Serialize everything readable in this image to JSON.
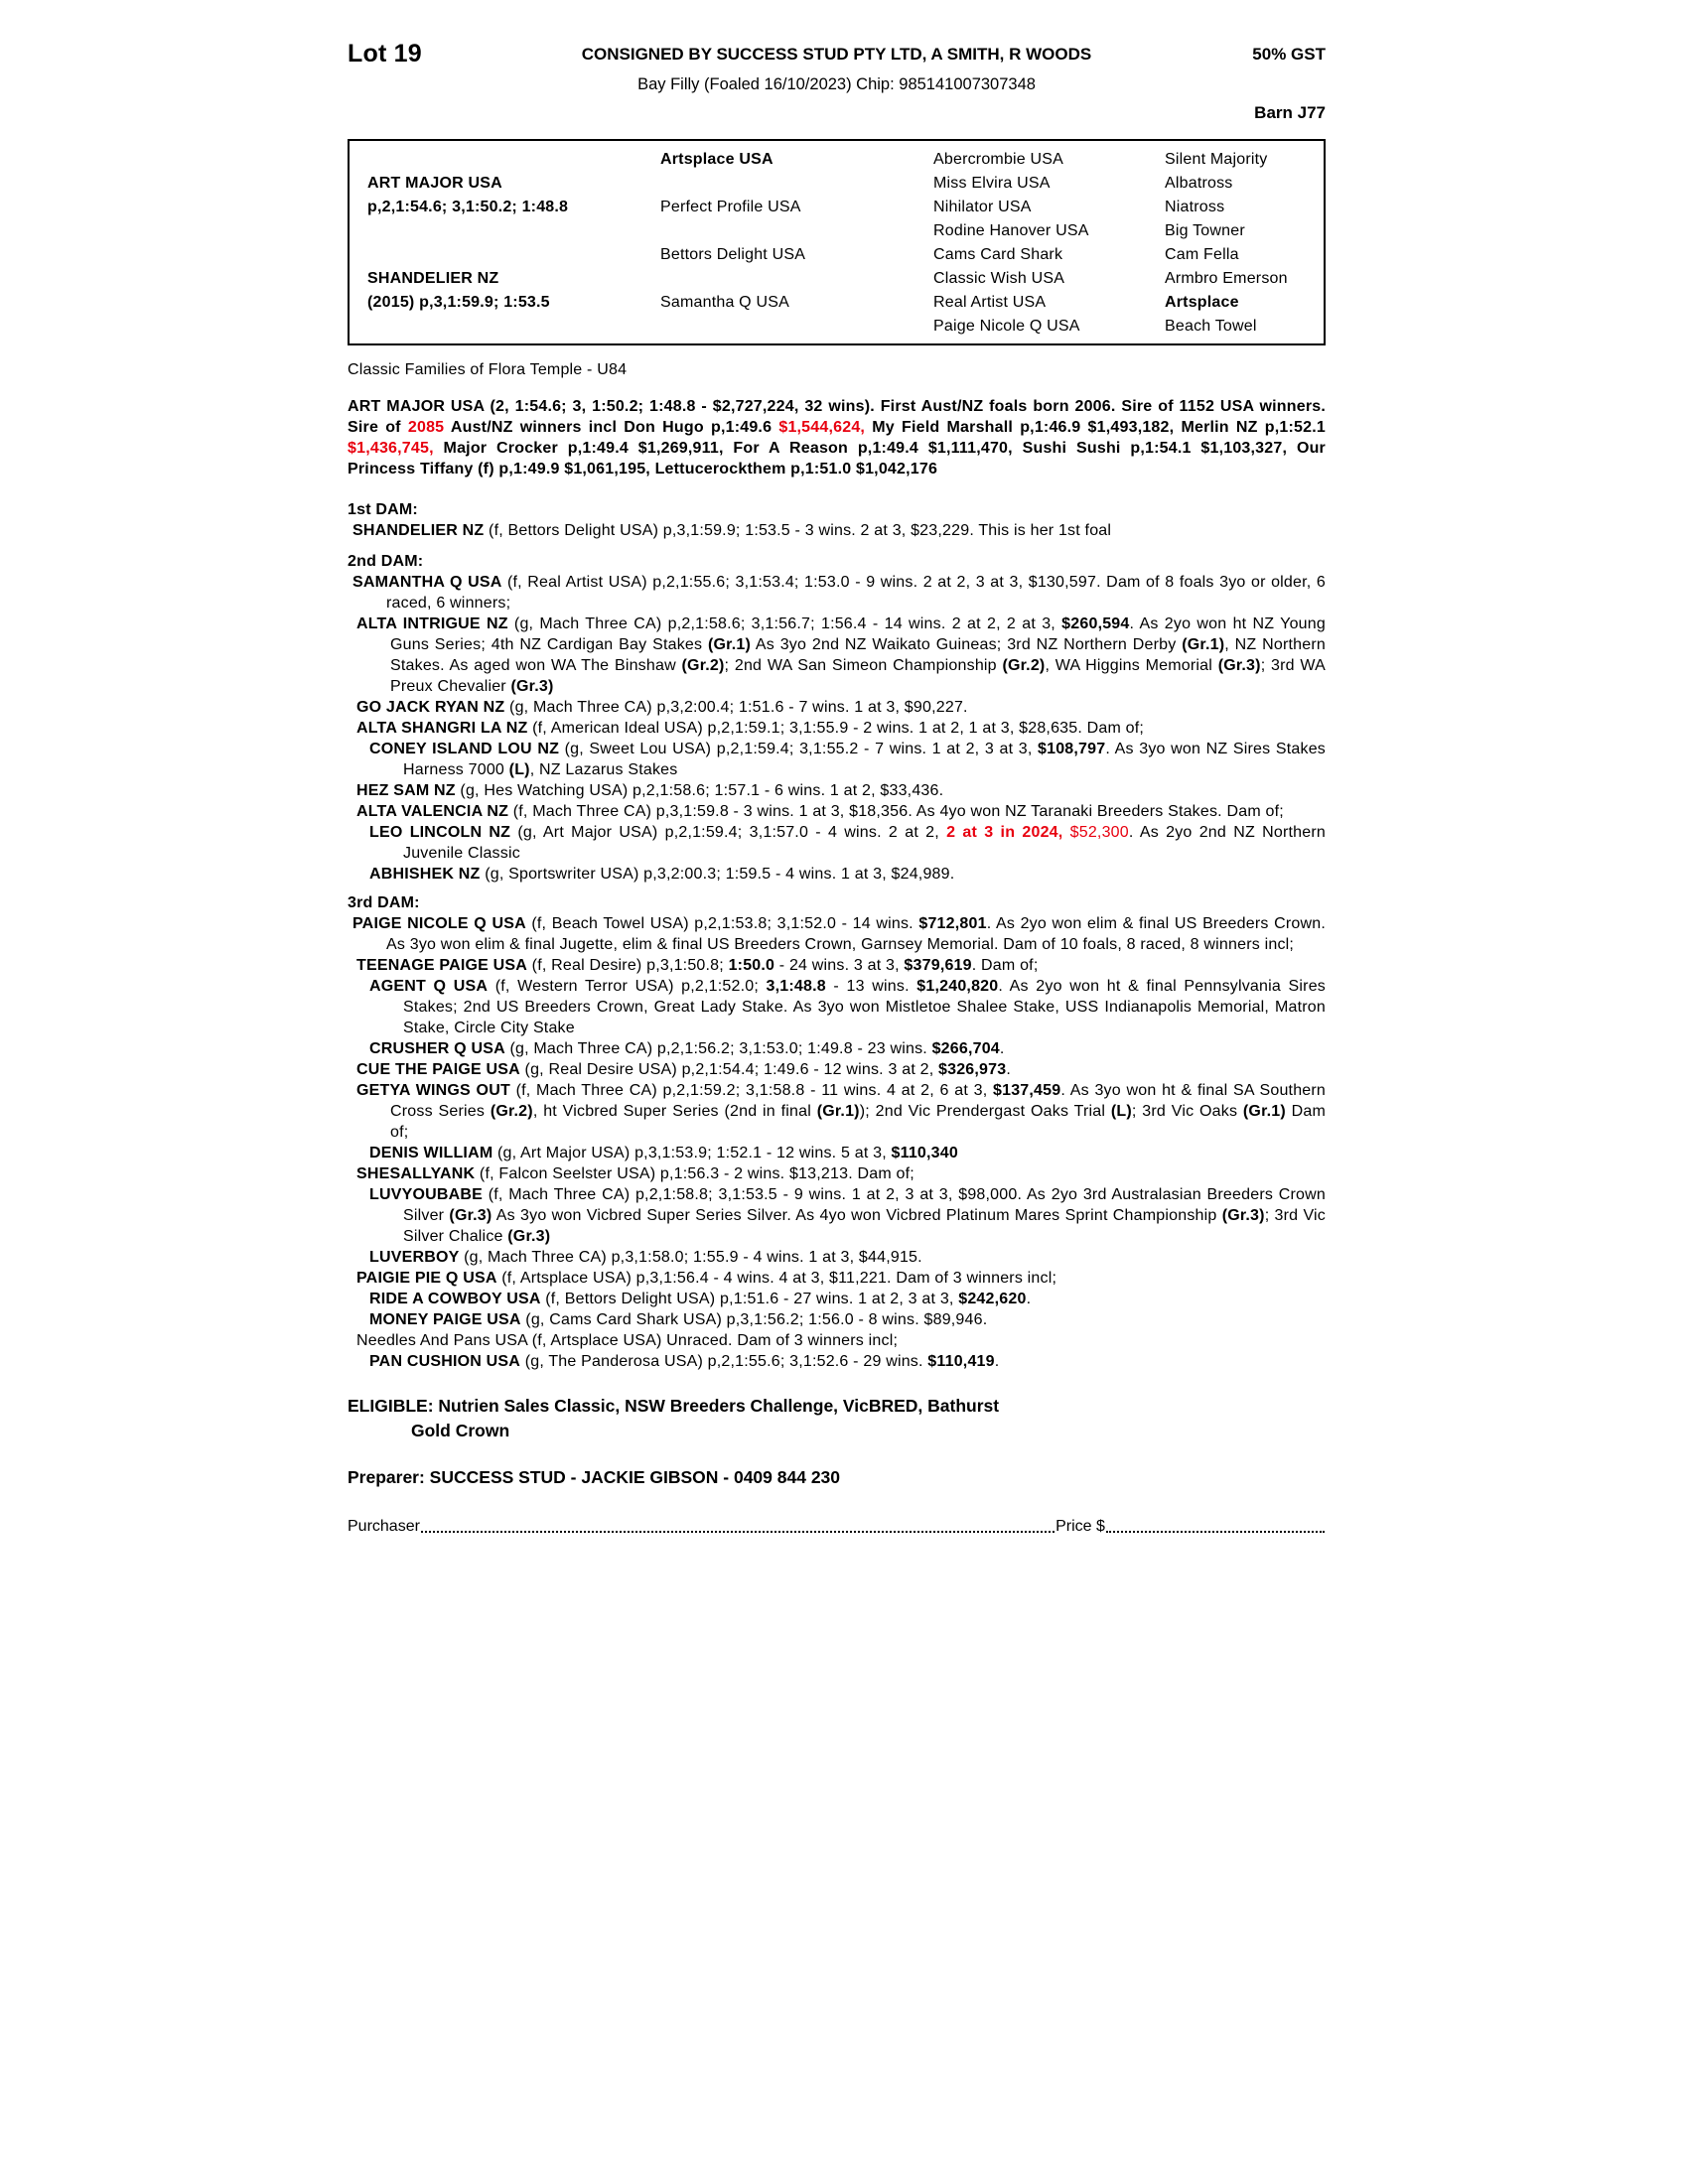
{
  "colors": {
    "red": "#e8000f",
    "text": "#000000"
  },
  "header": {
    "lot": "Lot 19",
    "consignor": "CONSIGNED BY SUCCESS STUD PTY LTD, A SMITH, R WOODS",
    "gst": "50% GST",
    "description": "Bay Filly (Foaled 16/10/2023) Chip: 985141007307348",
    "barn": "Barn J77"
  },
  "pedigree_table": {
    "col1": [
      {
        "name": "ART MAJOR USA",
        "record": "p,2,1:54.6; 3,1:50.2; 1:48.8",
        "row": 2
      },
      {
        "name": "SHANDELIER NZ",
        "record": "(2015) p,3,1:59.9; 1:53.5",
        "row": 6
      }
    ],
    "col2": [
      {
        "label": "Artsplace USA",
        "bold": true,
        "row": 1
      },
      {
        "label": "Perfect Profile USA",
        "bold": false,
        "row": 3
      },
      {
        "label": "Bettors Delight USA",
        "bold": false,
        "row": 5
      },
      {
        "label": "Samantha Q USA",
        "bold": false,
        "row": 7
      }
    ],
    "col3": [
      {
        "label": "Abercrombie USA"
      },
      {
        "label": "Miss Elvira USA"
      },
      {
        "label": "Nihilator USA"
      },
      {
        "label": "Rodine Hanover USA"
      },
      {
        "label": "Cams Card Shark"
      },
      {
        "label": "Classic Wish USA"
      },
      {
        "label": "Real Artist USA"
      },
      {
        "label": "Paige Nicole Q USA"
      }
    ],
    "col4": [
      {
        "label": "Silent Majority"
      },
      {
        "label": "Albatross"
      },
      {
        "label": "Niatross"
      },
      {
        "label": "Big Towner"
      },
      {
        "label": "Cam Fella"
      },
      {
        "label": "Armbro Emerson"
      },
      {
        "label": "Artsplace",
        "bold": true
      },
      {
        "label": "Beach Towel"
      }
    ]
  },
  "family_line": "Classic Families of Flora Temple - U84",
  "body": {
    "blocks": [
      {
        "cls": "para",
        "name": "sire-paragraph",
        "seg": [
          [
            "ART MAJOR USA (2, 1:54.6; 3, 1:50.2; 1:48.8 - $2,727,224, 32 wins). First Aust/NZ foals born 2006. Sire of 1152 USA winners. Sire of ",
            ""
          ],
          [
            "2085",
            "r"
          ],
          [
            " Aust/NZ winners incl Don Hugo p,1:49.6 ",
            ""
          ],
          [
            "$1,544,624,",
            "r"
          ],
          [
            " My Field Marshall p,1:46.9 $1,493,182, Merlin NZ p,1:52.1 ",
            ""
          ],
          [
            "$1,436,745,",
            "r"
          ],
          [
            " Major Crocker p,1:49.4 $1,269,911, For A Reason p,1:49.4 $1,111,470, Sushi Sushi p,1:54.1 $1,103,327, Our Princess Tiffany (f) p,1:49.9 $1,061,195, Lettucerockthem p,1:51.0 $1,042,176",
            ""
          ]
        ]
      },
      {
        "cls": "hd",
        "mt": 20,
        "name": "heading-1st-dam",
        "seg": [
          [
            "1st DAM:",
            ""
          ]
        ]
      },
      {
        "cls": "e0",
        "seg": [
          [
            "SHANDELIER NZ",
            "b"
          ],
          [
            " (f, Bettors Delight USA) p,3,1:59.9; 1:53.5 - 3 wins. 2 at 3, $23,229. This is her 1st foal",
            ""
          ]
        ]
      },
      {
        "cls": "hd",
        "mt": 10,
        "name": "heading-2nd-dam",
        "seg": [
          [
            "2nd DAM:",
            ""
          ]
        ]
      },
      {
        "cls": "e0",
        "seg": [
          [
            "SAMANTHA Q USA",
            "b"
          ],
          [
            " (f, Real Artist USA) p,2,1:55.6; 3,1:53.4; 1:53.0 - 9 wins. 2 at 2, 3 at 3, $130,597. Dam of 8 foals 3yo or older, 6 raced, 6 winners;",
            ""
          ]
        ]
      },
      {
        "cls": "e1",
        "seg": [
          [
            "ALTA INTRIGUE NZ",
            "b"
          ],
          [
            " (g, Mach Three CA) p,2,1:58.6; 3,1:56.7; 1:56.4 - 14 wins. 2 at 2, 2 at 3, ",
            ""
          ],
          [
            "$260,594",
            "b"
          ],
          [
            ". As 2yo won ht NZ Young Guns Series; 4th NZ Cardigan Bay Stakes ",
            ""
          ],
          [
            "(Gr.1)",
            "b"
          ],
          [
            " As 3yo 2nd NZ Waikato Guineas; 3rd NZ Northern Derby ",
            ""
          ],
          [
            "(Gr.1)",
            "b"
          ],
          [
            ", NZ Northern Stakes. As aged won WA The Binshaw ",
            ""
          ],
          [
            "(Gr.2)",
            "b"
          ],
          [
            "; 2nd WA San Simeon Championship ",
            ""
          ],
          [
            "(Gr.2)",
            "b"
          ],
          [
            ", WA Higgins Memorial ",
            ""
          ],
          [
            "(Gr.3)",
            "b"
          ],
          [
            "; 3rd WA Preux Chevalier ",
            ""
          ],
          [
            "(Gr.3)",
            "b"
          ]
        ]
      },
      {
        "cls": "e1",
        "seg": [
          [
            "GO JACK RYAN NZ",
            "b"
          ],
          [
            " (g, Mach Three CA) p,3,2:00.4; 1:51.6 - 7 wins. 1 at 3, $90,227.",
            ""
          ]
        ]
      },
      {
        "cls": "e1",
        "seg": [
          [
            "ALTA SHANGRI LA NZ",
            "b"
          ],
          [
            " (f, American Ideal USA) p,2,1:59.1; 3,1:55.9 - 2 wins. 1 at 2, 1 at 3, $28,635. Dam of;",
            ""
          ]
        ]
      },
      {
        "cls": "e2",
        "seg": [
          [
            "CONEY ISLAND LOU NZ",
            "b"
          ],
          [
            " (g, Sweet Lou USA) p,2,1:59.4; 3,1:55.2 - 7 wins. 1 at 2, 3 at 3, ",
            ""
          ],
          [
            "$108,797",
            "b"
          ],
          [
            ". As 3yo won NZ Sires Stakes Harness 7000 ",
            ""
          ],
          [
            "(L)",
            "b"
          ],
          [
            ", NZ Lazarus Stakes",
            ""
          ]
        ]
      },
      {
        "cls": "e1",
        "seg": [
          [
            "HEZ SAM NZ",
            "b"
          ],
          [
            " (g, Hes Watching USA) p,2,1:58.6; 1:57.1 - 6 wins. 1 at 2, $33,436.",
            ""
          ]
        ]
      },
      {
        "cls": "e1",
        "seg": [
          [
            "ALTA VALENCIA NZ",
            "b"
          ],
          [
            " (f, Mach Three CA) p,3,1:59.8 - 3 wins. 1 at 3, $18,356. As 4yo won NZ Taranaki Breeders Stakes. Dam of;",
            ""
          ]
        ]
      },
      {
        "cls": "e2",
        "seg": [
          [
            "LEO LINCOLN NZ",
            "b"
          ],
          [
            " (g, Art Major USA) p,2,1:59.4; 3,1:57.0 - 4 wins. 2 at 2, ",
            ""
          ],
          [
            "2 at 3 in 2024,",
            "br"
          ],
          [
            " ",
            ""
          ],
          [
            "$52,300",
            "r"
          ],
          [
            ". As 2yo 2nd NZ Northern Juvenile Classic",
            ""
          ]
        ]
      },
      {
        "cls": "e2",
        "seg": [
          [
            "ABHISHEK NZ",
            "b"
          ],
          [
            " (g, Sportswriter USA) p,3,2:00.3; 1:59.5 - 4 wins. 1 at 3, $24,989.",
            ""
          ]
        ]
      },
      {
        "cls": "hd",
        "mt": 8,
        "name": "heading-3rd-dam",
        "seg": [
          [
            "3rd DAM:",
            ""
          ]
        ]
      },
      {
        "cls": "e0",
        "seg": [
          [
            "PAIGE NICOLE Q USA",
            "b"
          ],
          [
            " (f, Beach Towel USA) p,2,1:53.8; 3,1:52.0 - 14 wins. ",
            ""
          ],
          [
            "$712,801",
            "b"
          ],
          [
            ". As 2yo won elim & final US Breeders Crown. As 3yo won elim & final Jugette, elim & final US Breeders Crown, Garnsey Memorial. Dam of 10 foals, 8 raced, 8 winners incl;",
            ""
          ]
        ]
      },
      {
        "cls": "e1",
        "seg": [
          [
            "TEENAGE PAIGE USA",
            "b"
          ],
          [
            " (f, Real Desire) p,3,1:50.8; ",
            ""
          ],
          [
            "1:50.0",
            "b"
          ],
          [
            " - 24 wins. 3 at 3, ",
            ""
          ],
          [
            "$379,619",
            "b"
          ],
          [
            ". Dam of;",
            ""
          ]
        ]
      },
      {
        "cls": "e2",
        "seg": [
          [
            "AGENT Q USA",
            "b"
          ],
          [
            " (f, Western Terror USA) p,2,1:52.0; ",
            ""
          ],
          [
            "3,1:48.8",
            "b"
          ],
          [
            " - 13 wins. ",
            ""
          ],
          [
            "$1,240,820",
            "b"
          ],
          [
            ". As 2yo won ht & final Pennsylvania Sires Stakes; 2nd US Breeders Crown, Great Lady Stake. As 3yo won Mistletoe Shalee Stake, USS Indianapolis Memorial, Matron Stake, Circle City Stake",
            ""
          ]
        ]
      },
      {
        "cls": "e2",
        "seg": [
          [
            "CRUSHER Q USA",
            "b"
          ],
          [
            " (g, Mach Three CA) p,2,1:56.2; 3,1:53.0; 1:49.8 - 23 wins. ",
            ""
          ],
          [
            "$266,704",
            "b"
          ],
          [
            ".",
            ""
          ]
        ]
      },
      {
        "cls": "e1",
        "seg": [
          [
            "CUE THE PAIGE USA",
            "b"
          ],
          [
            " (g, Real Desire USA) p,2,1:54.4; 1:49.6 - 12 wins. 3 at 2, ",
            ""
          ],
          [
            "$326,973",
            "b"
          ],
          [
            ".",
            ""
          ]
        ]
      },
      {
        "cls": "e1",
        "seg": [
          [
            "GETYA WINGS OUT",
            "b"
          ],
          [
            " (f, Mach Three CA) p,2,1:59.2; 3,1:58.8 - 11 wins. 4 at 2, 6 at 3, ",
            ""
          ],
          [
            "$137,459",
            "b"
          ],
          [
            ". As 3yo won ht & final SA Southern Cross Series ",
            ""
          ],
          [
            "(Gr.2)",
            "b"
          ],
          [
            ", ht Vicbred Super Series (2nd in final ",
            ""
          ],
          [
            "(Gr.1)",
            "b"
          ],
          [
            "); 2nd Vic Prendergast Oaks Trial ",
            ""
          ],
          [
            "(L)",
            "b"
          ],
          [
            "; 3rd Vic Oaks ",
            ""
          ],
          [
            "(Gr.1)",
            "b"
          ],
          [
            " Dam of;",
            ""
          ]
        ]
      },
      {
        "cls": "e2",
        "seg": [
          [
            "DENIS WILLIAM",
            "b"
          ],
          [
            " (g, Art Major USA) p,3,1:53.9; 1:52.1 - 12 wins. 5 at 3, ",
            ""
          ],
          [
            "$110,340",
            "b"
          ]
        ]
      },
      {
        "cls": "e1",
        "seg": [
          [
            "SHESALLYANK",
            "b"
          ],
          [
            " (f, Falcon Seelster USA) p,1:56.3 - 2 wins. $13,213. Dam of;",
            ""
          ]
        ]
      },
      {
        "cls": "e2",
        "seg": [
          [
            "LUVYOUBABE",
            "b"
          ],
          [
            " (f, Mach Three CA) p,2,1:58.8; 3,1:53.5 - 9 wins. 1 at 2, 3 at 3, $98,000. As 2yo 3rd Australasian Breeders Crown Silver ",
            ""
          ],
          [
            "(Gr.3)",
            "b"
          ],
          [
            " As 3yo won Vicbred Super Series Silver. As 4yo won Vicbred Platinum Mares Sprint Championship ",
            ""
          ],
          [
            "(Gr.3)",
            "b"
          ],
          [
            "; 3rd Vic Silver Chalice ",
            ""
          ],
          [
            "(Gr.3)",
            "b"
          ]
        ]
      },
      {
        "cls": "e2",
        "seg": [
          [
            "LUVERBOY",
            "b"
          ],
          [
            " (g, Mach Three CA) p,3,1:58.0; 1:55.9 - 4 wins. 1 at 3, $44,915.",
            ""
          ]
        ]
      },
      {
        "cls": "e1",
        "seg": [
          [
            "PAIGIE PIE Q USA",
            "b"
          ],
          [
            " (f, Artsplace USA) p,3,1:56.4 - 4 wins. 4 at 3, $11,221. Dam of 3 winners incl;",
            ""
          ]
        ]
      },
      {
        "cls": "e2",
        "seg": [
          [
            "RIDE A COWBOY USA",
            "b"
          ],
          [
            " (f, Bettors Delight USA) p,1:51.6 - 27 wins. 1 at 2, 3 at 3, ",
            ""
          ],
          [
            "$242,620",
            "b"
          ],
          [
            ".",
            ""
          ]
        ]
      },
      {
        "cls": "e2",
        "seg": [
          [
            "MONEY PAIGE USA",
            "b"
          ],
          [
            " (g, Cams Card Shark USA) p,3,1:56.2; 1:56.0 - 8 wins. $89,946.",
            ""
          ]
        ]
      },
      {
        "cls": "e1",
        "seg": [
          [
            "Needles And Pans USA (f, Artsplace USA) Unraced. Dam of 3 winners incl;",
            ""
          ]
        ]
      },
      {
        "cls": "e2",
        "seg": [
          [
            "PAN CUSHION USA",
            "b"
          ],
          [
            " (g, The Panderosa USA) p,2,1:55.6; 3,1:52.6 - 29 wins. ",
            ""
          ],
          [
            "$110,419",
            "b"
          ],
          [
            ".",
            ""
          ]
        ]
      }
    ]
  },
  "footer": {
    "eligible_line1": "ELIGIBLE: Nutrien Sales Classic, NSW Breeders Challenge, VicBRED, Bathurst",
    "eligible_line2": "Gold Crown",
    "preparer": "Preparer: SUCCESS STUD - JACKIE GIBSON - 0409 844 230",
    "purchaser_label": "Purchaser",
    "price_label": "Price $"
  }
}
